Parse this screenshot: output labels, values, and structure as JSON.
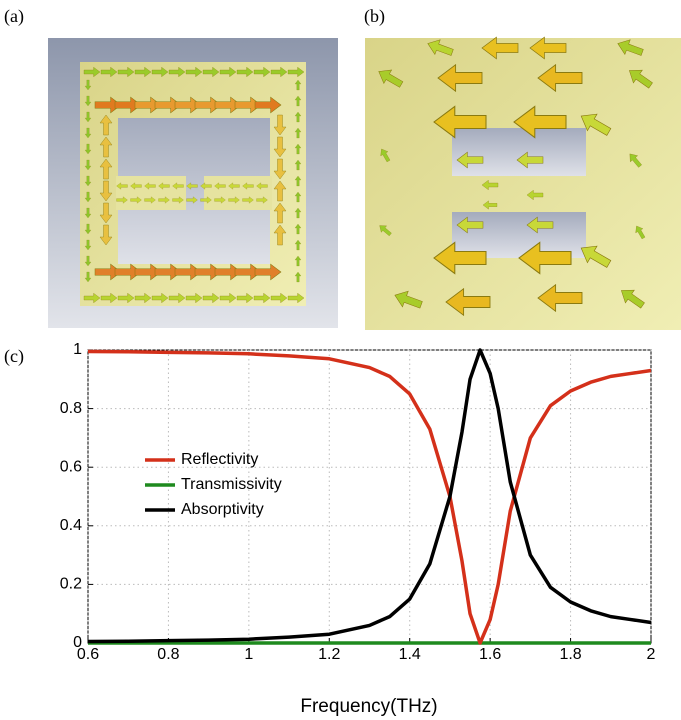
{
  "panel_labels": [
    "(a)",
    "(b)",
    "(c)"
  ],
  "chart_data": {
    "type": "line",
    "xlabel": "Frequency(THz)",
    "x": [
      0.6,
      0.7,
      0.8,
      0.9,
      1.0,
      1.1,
      1.2,
      1.3,
      1.35,
      1.4,
      1.45,
      1.5,
      1.53,
      1.55,
      1.575,
      1.6,
      1.62,
      1.65,
      1.7,
      1.75,
      1.8,
      1.85,
      1.9,
      1.95,
      2.0
    ],
    "series": [
      {
        "name": "Reflectivity",
        "color": "#d4301a",
        "values": [
          0.995,
          0.994,
          0.992,
          0.99,
          0.987,
          0.98,
          0.97,
          0.94,
          0.91,
          0.85,
          0.73,
          0.5,
          0.28,
          0.1,
          0,
          0.08,
          0.2,
          0.45,
          0.7,
          0.81,
          0.86,
          0.89,
          0.91,
          0.92,
          0.93
        ]
      },
      {
        "name": "Transmissivity",
        "color": "#1e8a1e",
        "values": [
          0,
          0,
          0,
          0,
          0,
          0,
          0,
          0,
          0,
          0,
          0,
          0,
          0,
          0,
          0,
          0,
          0,
          0,
          0,
          0,
          0,
          0,
          0,
          0,
          0
        ]
      },
      {
        "name": "Absorptivity",
        "color": "#000000",
        "values": [
          0.005,
          0.006,
          0.008,
          0.01,
          0.013,
          0.02,
          0.03,
          0.06,
          0.09,
          0.15,
          0.27,
          0.5,
          0.72,
          0.9,
          1,
          0.92,
          0.8,
          0.55,
          0.3,
          0.19,
          0.14,
          0.11,
          0.09,
          0.08,
          0.07
        ]
      }
    ],
    "xlim": [
      0.6,
      2
    ],
    "xticks": [
      0.6,
      0.8,
      1,
      1.2,
      1.4,
      1.6,
      1.8,
      2
    ],
    "ylim": [
      0,
      1
    ],
    "yticks": [
      0,
      0.2,
      0.4,
      0.6,
      0.8,
      1
    ],
    "grid": true,
    "legend": "center left"
  }
}
